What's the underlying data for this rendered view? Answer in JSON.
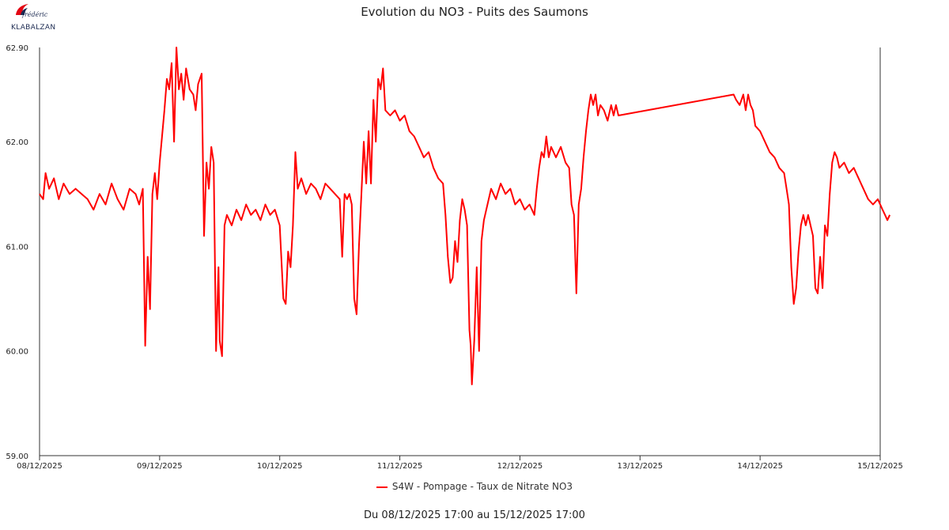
{
  "logo": {
    "script_text": "frédéric",
    "text": "KLABALZAN",
    "icon": "red-flame-logo-icon",
    "color": "#e30613"
  },
  "chart_data": {
    "type": "line",
    "title": "Evolution du NO3 - Puits des Saumons",
    "subtitle": "Du 08/12/2025 17:00 au 15/12/2025 17:00",
    "xlabel": "",
    "ylabel": "",
    "x_unit": "days",
    "xlim": [
      0,
      7
    ],
    "ylim": [
      59.0,
      62.9
    ],
    "y_ticks": [
      "59.00",
      "60.00",
      "61.00",
      "62.00",
      "62.90"
    ],
    "y_tick_values": [
      59.0,
      60.0,
      61.0,
      62.0,
      62.9
    ],
    "x_ticks": [
      "08/12/2025",
      "09/12/2025",
      "10/12/2025",
      "11/12/2025",
      "12/12/2025",
      "13/12/2025",
      "14/12/2025",
      "15/12/2025"
    ],
    "legend_position": "bottom",
    "grid": false,
    "series": [
      {
        "name": "S4W - Pompage - Taux de Nitrate NO3",
        "color": "#ff0000",
        "points": [
          [
            0.0,
            61.5
          ],
          [
            0.03,
            61.45
          ],
          [
            0.05,
            61.7
          ],
          [
            0.08,
            61.55
          ],
          [
            0.12,
            61.65
          ],
          [
            0.16,
            61.45
          ],
          [
            0.2,
            61.6
          ],
          [
            0.25,
            61.5
          ],
          [
            0.3,
            61.55
          ],
          [
            0.35,
            61.5
          ],
          [
            0.4,
            61.45
          ],
          [
            0.45,
            61.35
          ],
          [
            0.5,
            61.5
          ],
          [
            0.55,
            61.4
          ],
          [
            0.6,
            61.6
          ],
          [
            0.65,
            61.45
          ],
          [
            0.7,
            61.35
          ],
          [
            0.75,
            61.55
          ],
          [
            0.8,
            61.5
          ],
          [
            0.83,
            61.4
          ],
          [
            0.86,
            61.55
          ],
          [
            0.88,
            60.05
          ],
          [
            0.9,
            60.9
          ],
          [
            0.92,
            60.4
          ],
          [
            0.94,
            61.5
          ],
          [
            0.96,
            61.7
          ],
          [
            0.98,
            61.45
          ],
          [
            1.0,
            61.8
          ],
          [
            1.02,
            62.05
          ],
          [
            1.04,
            62.3
          ],
          [
            1.06,
            62.6
          ],
          [
            1.08,
            62.5
          ],
          [
            1.1,
            62.75
          ],
          [
            1.12,
            62.0
          ],
          [
            1.14,
            62.9
          ],
          [
            1.16,
            62.5
          ],
          [
            1.18,
            62.65
          ],
          [
            1.2,
            62.4
          ],
          [
            1.22,
            62.7
          ],
          [
            1.25,
            62.5
          ],
          [
            1.28,
            62.45
          ],
          [
            1.3,
            62.3
          ],
          [
            1.32,
            62.55
          ],
          [
            1.35,
            62.65
          ],
          [
            1.37,
            61.1
          ],
          [
            1.39,
            61.8
          ],
          [
            1.41,
            61.55
          ],
          [
            1.43,
            61.95
          ],
          [
            1.45,
            61.8
          ],
          [
            1.47,
            60.0
          ],
          [
            1.49,
            60.8
          ],
          [
            1.5,
            60.1
          ],
          [
            1.52,
            59.95
          ],
          [
            1.54,
            61.2
          ],
          [
            1.56,
            61.3
          ],
          [
            1.6,
            61.2
          ],
          [
            1.64,
            61.35
          ],
          [
            1.68,
            61.25
          ],
          [
            1.72,
            61.4
          ],
          [
            1.76,
            61.3
          ],
          [
            1.8,
            61.35
          ],
          [
            1.84,
            61.25
          ],
          [
            1.88,
            61.4
          ],
          [
            1.92,
            61.3
          ],
          [
            1.96,
            61.35
          ],
          [
            2.0,
            61.2
          ],
          [
            2.03,
            60.5
          ],
          [
            2.05,
            60.45
          ],
          [
            2.07,
            60.95
          ],
          [
            2.09,
            60.8
          ],
          [
            2.11,
            61.2
          ],
          [
            2.13,
            61.9
          ],
          [
            2.15,
            61.55
          ],
          [
            2.18,
            61.65
          ],
          [
            2.22,
            61.5
          ],
          [
            2.26,
            61.6
          ],
          [
            2.3,
            61.55
          ],
          [
            2.34,
            61.45
          ],
          [
            2.38,
            61.6
          ],
          [
            2.42,
            61.55
          ],
          [
            2.46,
            61.5
          ],
          [
            2.5,
            61.45
          ],
          [
            2.52,
            60.9
          ],
          [
            2.54,
            61.5
          ],
          [
            2.56,
            61.45
          ],
          [
            2.58,
            61.5
          ],
          [
            2.6,
            61.4
          ],
          [
            2.62,
            60.5
          ],
          [
            2.64,
            60.35
          ],
          [
            2.66,
            61.0
          ],
          [
            2.68,
            61.5
          ],
          [
            2.7,
            62.0
          ],
          [
            2.72,
            61.6
          ],
          [
            2.74,
            62.1
          ],
          [
            2.76,
            61.6
          ],
          [
            2.78,
            62.4
          ],
          [
            2.8,
            62.0
          ],
          [
            2.82,
            62.6
          ],
          [
            2.84,
            62.5
          ],
          [
            2.86,
            62.7
          ],
          [
            2.88,
            62.3
          ],
          [
            2.92,
            62.25
          ],
          [
            2.96,
            62.3
          ],
          [
            3.0,
            62.2
          ],
          [
            3.04,
            62.25
          ],
          [
            3.08,
            62.1
          ],
          [
            3.12,
            62.05
          ],
          [
            3.16,
            61.95
          ],
          [
            3.2,
            61.85
          ],
          [
            3.24,
            61.9
          ],
          [
            3.28,
            61.75
          ],
          [
            3.32,
            61.65
          ],
          [
            3.36,
            61.6
          ],
          [
            3.38,
            61.3
          ],
          [
            3.4,
            60.9
          ],
          [
            3.42,
            60.65
          ],
          [
            3.44,
            60.7
          ],
          [
            3.46,
            61.05
          ],
          [
            3.48,
            60.85
          ],
          [
            3.5,
            61.25
          ],
          [
            3.52,
            61.45
          ],
          [
            3.54,
            61.35
          ],
          [
            3.56,
            61.2
          ],
          [
            3.58,
            60.2
          ],
          [
            3.59,
            60.05
          ],
          [
            3.6,
            59.68
          ],
          [
            3.62,
            60.1
          ],
          [
            3.64,
            60.8
          ],
          [
            3.66,
            60.0
          ],
          [
            3.68,
            61.05
          ],
          [
            3.7,
            61.25
          ],
          [
            3.72,
            61.35
          ],
          [
            3.76,
            61.55
          ],
          [
            3.8,
            61.45
          ],
          [
            3.84,
            61.6
          ],
          [
            3.88,
            61.5
          ],
          [
            3.92,
            61.55
          ],
          [
            3.96,
            61.4
          ],
          [
            4.0,
            61.45
          ],
          [
            4.04,
            61.35
          ],
          [
            4.08,
            61.4
          ],
          [
            4.12,
            61.3
          ],
          [
            4.14,
            61.55
          ],
          [
            4.16,
            61.75
          ],
          [
            4.18,
            61.9
          ],
          [
            4.2,
            61.85
          ],
          [
            4.22,
            62.05
          ],
          [
            4.24,
            61.85
          ],
          [
            4.26,
            61.95
          ],
          [
            4.3,
            61.85
          ],
          [
            4.34,
            61.95
          ],
          [
            4.38,
            61.8
          ],
          [
            4.41,
            61.75
          ],
          [
            4.43,
            61.4
          ],
          [
            4.45,
            61.3
          ],
          [
            4.47,
            60.55
          ],
          [
            4.49,
            61.4
          ],
          [
            4.51,
            61.55
          ],
          [
            4.53,
            61.85
          ],
          [
            4.55,
            62.1
          ],
          [
            4.57,
            62.3
          ],
          [
            4.59,
            62.45
          ],
          [
            4.61,
            62.35
          ],
          [
            4.63,
            62.45
          ],
          [
            4.65,
            62.25
          ],
          [
            4.67,
            62.35
          ],
          [
            4.7,
            62.3
          ],
          [
            4.73,
            62.2
          ],
          [
            4.76,
            62.35
          ],
          [
            4.78,
            62.25
          ],
          [
            4.8,
            62.35
          ],
          [
            4.82,
            62.25
          ],
          [
            5.78,
            62.45
          ],
          [
            5.8,
            62.4
          ],
          [
            5.83,
            62.35
          ],
          [
            5.86,
            62.45
          ],
          [
            5.88,
            62.3
          ],
          [
            5.9,
            62.45
          ],
          [
            5.92,
            62.35
          ],
          [
            5.94,
            62.3
          ],
          [
            5.96,
            62.15
          ],
          [
            6.0,
            62.1
          ],
          [
            6.04,
            62.0
          ],
          [
            6.08,
            61.9
          ],
          [
            6.12,
            61.85
          ],
          [
            6.16,
            61.75
          ],
          [
            6.2,
            61.7
          ],
          [
            6.22,
            61.55
          ],
          [
            6.24,
            61.4
          ],
          [
            6.26,
            60.8
          ],
          [
            6.28,
            60.45
          ],
          [
            6.3,
            60.6
          ],
          [
            6.32,
            60.95
          ],
          [
            6.34,
            61.2
          ],
          [
            6.36,
            61.3
          ],
          [
            6.38,
            61.2
          ],
          [
            6.4,
            61.3
          ],
          [
            6.42,
            61.2
          ],
          [
            6.44,
            61.1
          ],
          [
            6.46,
            60.6
          ],
          [
            6.48,
            60.55
          ],
          [
            6.5,
            60.9
          ],
          [
            6.52,
            60.6
          ],
          [
            6.54,
            61.2
          ],
          [
            6.56,
            61.1
          ],
          [
            6.58,
            61.5
          ],
          [
            6.6,
            61.8
          ],
          [
            6.62,
            61.9
          ],
          [
            6.64,
            61.85
          ],
          [
            6.66,
            61.75
          ],
          [
            6.7,
            61.8
          ],
          [
            6.74,
            61.7
          ],
          [
            6.78,
            61.75
          ],
          [
            6.82,
            61.65
          ],
          [
            6.86,
            61.55
          ],
          [
            6.9,
            61.45
          ],
          [
            6.94,
            61.4
          ],
          [
            6.98,
            61.45
          ],
          [
            7.02,
            61.35
          ],
          [
            7.04,
            61.3
          ],
          [
            7.06,
            61.25
          ],
          [
            7.08,
            61.3
          ]
        ]
      }
    ]
  }
}
